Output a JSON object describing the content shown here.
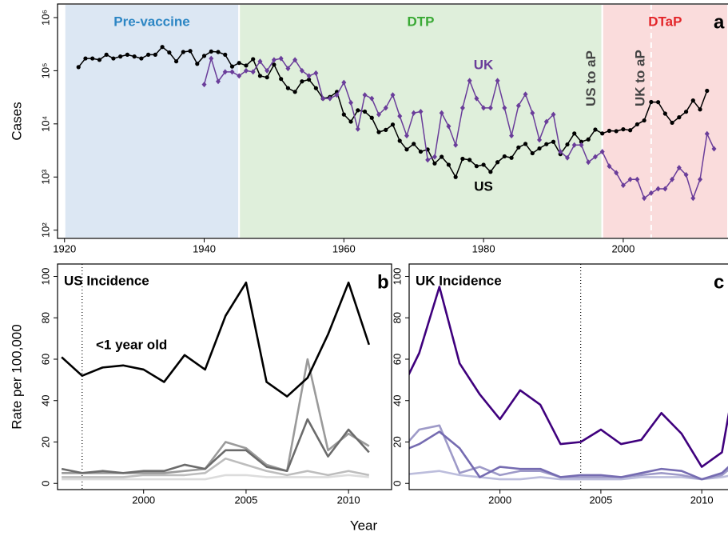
{
  "xlabel": "Year",
  "chart_data": [
    {
      "type": "line",
      "panel_label": "a",
      "ylabel": "Cases",
      "log": true,
      "xlim": [
        1919,
        2015
      ],
      "ylim": [
        70,
        1800000
      ],
      "xticks": [
        1920,
        1940,
        1960,
        1980,
        2000
      ],
      "yticks": [
        {
          "value": 100,
          "label": "10²"
        },
        {
          "value": 1000,
          "label": "10³"
        },
        {
          "value": 10000,
          "label": "10⁴"
        },
        {
          "value": 100000,
          "label": "10⁵"
        },
        {
          "value": 1000000,
          "label": "10⁶"
        }
      ],
      "regions": [
        {
          "label": "Pre-vaccine",
          "start": 1920,
          "end": 1945,
          "color": "#dce7f3",
          "text_color": "#2c86c4"
        },
        {
          "label": "DTP",
          "start": 1945,
          "end": 1997,
          "color": "#dfefdb",
          "text_color": "#3aa935"
        },
        {
          "label": "DTaP",
          "start": 1997,
          "end": 2015,
          "color": "#fadcdc",
          "text_color": "#e3262a"
        }
      ],
      "vlines": [
        {
          "value": 1997,
          "label": "US to aP",
          "style": "solid",
          "color": "#ffffff"
        },
        {
          "value": 2004,
          "label": "UK to aP",
          "style": "dashed",
          "color": "#ffffff"
        }
      ],
      "series": [
        {
          "name": "US",
          "color": "#000000",
          "marker": "circle",
          "x": [
            1922,
            1923,
            1924,
            1925,
            1926,
            1927,
            1928,
            1929,
            1930,
            1931,
            1932,
            1933,
            1934,
            1935,
            1936,
            1937,
            1938,
            1939,
            1940,
            1941,
            1942,
            1943,
            1944,
            1945,
            1946,
            1947,
            1948,
            1949,
            1950,
            1951,
            1952,
            1953,
            1954,
            1955,
            1956,
            1957,
            1958,
            1959,
            1960,
            1961,
            1962,
            1963,
            1964,
            1965,
            1966,
            1967,
            1968,
            1969,
            1970,
            1971,
            1972,
            1973,
            1974,
            1975,
            1976,
            1977,
            1978,
            1979,
            1980,
            1981,
            1982,
            1983,
            1984,
            1985,
            1986,
            1987,
            1988,
            1989,
            1990,
            1991,
            1992,
            1993,
            1994,
            1995,
            1996,
            1997,
            1998,
            1999,
            2000,
            2001,
            2002,
            2003,
            2004,
            2005,
            2006,
            2007,
            2008,
            2009,
            2010,
            2011,
            2012
          ],
          "values": [
            117000,
            170000,
            170000,
            160000,
            200000,
            170000,
            185000,
            200000,
            185000,
            170000,
            200000,
            200000,
            280000,
            220000,
            150000,
            225000,
            235000,
            135000,
            190000,
            230000,
            225000,
            200000,
            120000,
            140000,
            125000,
            165000,
            80000,
            75000,
            130000,
            70000,
            47000,
            40000,
            63000,
            68000,
            47000,
            30000,
            32000,
            40000,
            15000,
            11000,
            18000,
            17000,
            13000,
            7000,
            7700,
            9700,
            4800,
            3300,
            4200,
            3000,
            3300,
            1800,
            2400,
            1700,
            1000,
            2200,
            2100,
            1600,
            1700,
            1250,
            1900,
            2450,
            2300,
            3600,
            4200,
            2800,
            3450,
            4150,
            4600,
            2700,
            4100,
            6600,
            4600,
            5100,
            7800,
            6600,
            7400,
            7300,
            7900,
            7600,
            9800,
            11600,
            25800,
            25600,
            15600,
            10500,
            13300,
            16900,
            27500,
            18700,
            41900
          ]
        },
        {
          "name": "UK",
          "color": "#6a3d9a",
          "marker": "diamond",
          "x": [
            1940,
            1941,
            1942,
            1943,
            1944,
            1945,
            1946,
            1947,
            1948,
            1949,
            1950,
            1951,
            1952,
            1953,
            1954,
            1955,
            1956,
            1957,
            1958,
            1959,
            1960,
            1961,
            1962,
            1963,
            1964,
            1965,
            1966,
            1967,
            1968,
            1969,
            1970,
            1971,
            1972,
            1973,
            1974,
            1975,
            1976,
            1977,
            1978,
            1979,
            1980,
            1981,
            1982,
            1983,
            1984,
            1985,
            1986,
            1987,
            1988,
            1989,
            1990,
            1991,
            1992,
            1993,
            1994,
            1995,
            1996,
            1997,
            1998,
            1999,
            2000,
            2001,
            2002,
            2003,
            2004,
            2005,
            2006,
            2007,
            2008,
            2009,
            2010,
            2011,
            2012,
            2013
          ],
          "values": [
            55000,
            170000,
            63000,
            95000,
            95000,
            80000,
            100000,
            95000,
            150000,
            100000,
            160000,
            170000,
            110000,
            160000,
            100000,
            80000,
            90000,
            30000,
            30000,
            35000,
            60000,
            25000,
            8000,
            35000,
            30000,
            15000,
            20000,
            35000,
            14000,
            6000,
            16000,
            17000,
            2100,
            2400,
            16000,
            9000,
            4000,
            20000,
            65000,
            30000,
            20000,
            20000,
            65000,
            20000,
            6000,
            22000,
            36000,
            16000,
            5000,
            11000,
            15000,
            3000,
            2300,
            4000,
            4000,
            1900,
            2400,
            3000,
            1600,
            1200,
            700,
            900,
            900,
            400,
            500,
            600,
            600,
            900,
            1500,
            1100,
            400,
            900,
            6500,
            3400
          ]
        }
      ]
    },
    {
      "type": "line",
      "panel_label": "b",
      "title": "US Incidence",
      "ylabel": "Rate per 100,000",
      "log": false,
      "xlim": [
        1995.8,
        2012.1
      ],
      "ylim": [
        -3,
        106
      ],
      "xticks": [
        2000,
        2005,
        2010
      ],
      "yticks": [
        0,
        20,
        40,
        60,
        80,
        100
      ],
      "vlines": [
        {
          "value": 1997,
          "style": "dotted",
          "color": "#000000"
        }
      ],
      "x": [
        1996,
        1997,
        1998,
        1999,
        2000,
        2001,
        2002,
        2003,
        2004,
        2005,
        2006,
        2007,
        2008,
        2009,
        2010,
        2011
      ],
      "series": [
        {
          "color": "#dcdcdc",
          "values": [
            2,
            2,
            2,
            2,
            2,
            2,
            2,
            2,
            4,
            4,
            3,
            3,
            3,
            3,
            4,
            3
          ]
        },
        {
          "color": "#bdbdbd",
          "values": [
            3,
            3,
            3,
            3,
            4,
            4,
            4,
            5,
            12,
            9,
            6,
            4,
            6,
            4,
            6,
            4
          ]
        },
        {
          "color": "#9a9a9a",
          "values": [
            5,
            5,
            5,
            5,
            5,
            5,
            6,
            7,
            20,
            17,
            9,
            6,
            60,
            16,
            24,
            18
          ]
        },
        {
          "color": "#6b6b6b",
          "values": [
            7,
            5,
            6,
            5,
            6,
            6,
            9,
            7,
            16,
            16,
            8,
            6,
            31,
            13,
            26,
            15
          ]
        },
        {
          "name": "<1 year old",
          "color": "#000000",
          "values": [
            61,
            52,
            56,
            57,
            55,
            49,
            62,
            55,
            81,
            97,
            49,
            42,
            51,
            72,
            97,
            67
          ]
        }
      ]
    },
    {
      "type": "line",
      "panel_label": "c",
      "title": "UK Incidence",
      "log": false,
      "xlim": [
        1995.5,
        2011.3
      ],
      "ylim": [
        -3,
        106
      ],
      "xticks": [
        2000,
        2005,
        2010
      ],
      "yticks": [
        0,
        20,
        40,
        60,
        80,
        100
      ],
      "vlines": [
        {
          "value": 2004,
          "style": "dotted",
          "color": "#000000"
        }
      ],
      "x": [
        1995,
        1996,
        1997,
        1998,
        1999,
        2000,
        2001,
        2002,
        2003,
        2004,
        2005,
        2006,
        2007,
        2008,
        2009,
        2010,
        2011,
        2012
      ],
      "series": [
        {
          "color": "#bcbddc",
          "values": [
            4,
            5,
            6,
            4,
            3,
            2,
            2,
            3,
            2,
            2,
            2,
            2,
            3,
            3,
            3,
            2,
            3,
            5
          ]
        },
        {
          "color": "#9e9ac8",
          "values": [
            15,
            26,
            28,
            5,
            8,
            4,
            6,
            6,
            3,
            3,
            3,
            3,
            4,
            5,
            4,
            2,
            4,
            12
          ]
        },
        {
          "color": "#756bb1",
          "values": [
            15,
            19,
            25,
            17,
            3,
            8,
            7,
            7,
            3,
            4,
            4,
            3,
            5,
            7,
            6,
            2,
            5,
            14
          ]
        },
        {
          "color": "#3f007d",
          "values": [
            43,
            63,
            95,
            58,
            43,
            31,
            45,
            38,
            19,
            20,
            26,
            19,
            21,
            34,
            24,
            8,
            15,
            70
          ]
        }
      ]
    }
  ]
}
